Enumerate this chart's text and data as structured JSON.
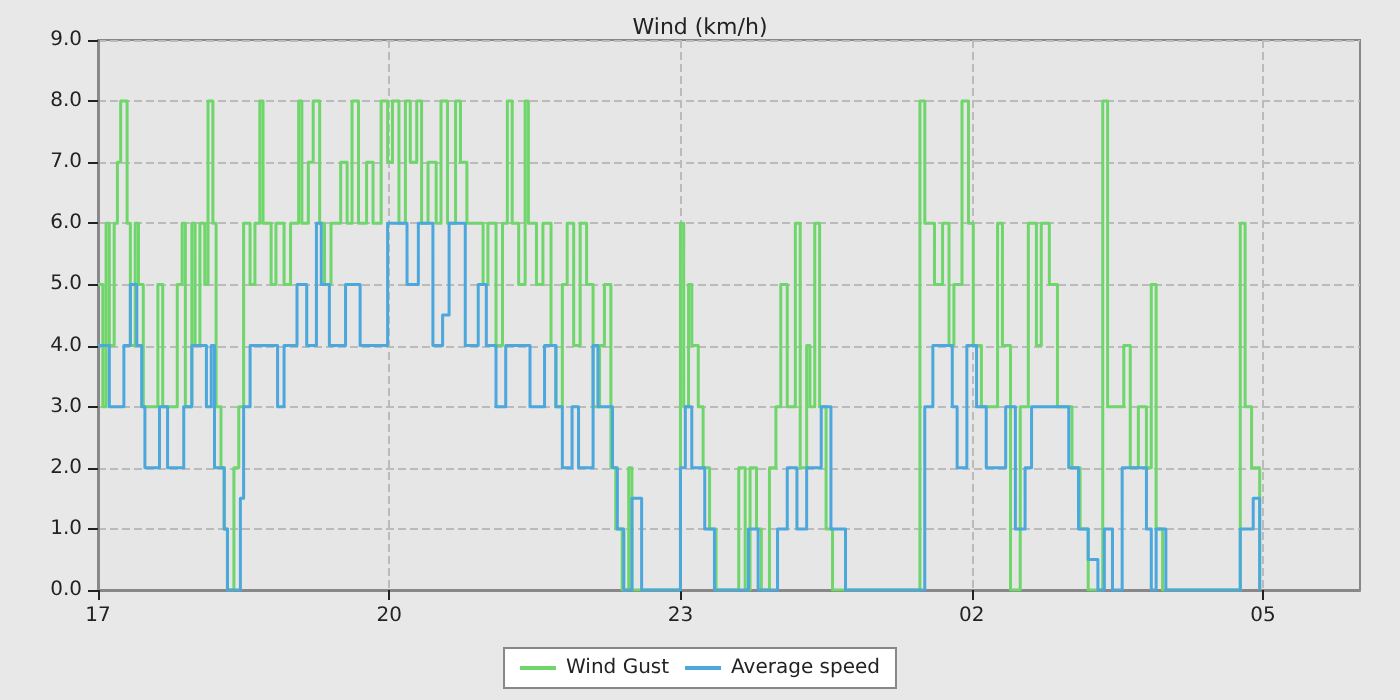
{
  "chart_data": {
    "type": "step",
    "title": "Wind (km/h)",
    "xlim": [
      "--01-01T17:00",
      "--01-02T06:00"
    ],
    "xticks": [
      {
        "value": "--01-01T17:00",
        "label": "17"
      },
      {
        "value": "--01-01T20:00",
        "label": "20"
      },
      {
        "value": "--01-01T23:00",
        "label": "23"
      },
      {
        "value": "--01-02T02:00",
        "label": "02"
      },
      {
        "value": "--01-02T05:00",
        "label": "05"
      }
    ],
    "ylim": [
      0,
      9
    ],
    "yticks": [
      {
        "value": 0,
        "label": "0.0"
      },
      {
        "value": 1,
        "label": "1.0"
      },
      {
        "value": 2,
        "label": "2.0"
      },
      {
        "value": 3,
        "label": "3.0"
      },
      {
        "value": 4,
        "label": "4.0"
      },
      {
        "value": 5,
        "label": "5.0"
      },
      {
        "value": 6,
        "label": "6.0"
      },
      {
        "value": 7,
        "label": "7.0"
      },
      {
        "value": 8,
        "label": "8.0"
      },
      {
        "value": 9,
        "label": "9.0"
      }
    ],
    "grid": true,
    "legend": "bottom",
    "marker": "none",
    "line_style": "solid",
    "series": [
      {
        "name": "Wind Gust",
        "color": "#6fd66b",
        "x": [
          "--01-01T17:00",
          "--01-01T17:03",
          "--01-01T17:05",
          "--01-01T17:07",
          "--01-01T17:10",
          "--01-01T17:12",
          "--01-01T17:14",
          "--01-01T17:18",
          "--01-01T17:20",
          "--01-01T17:23",
          "--01-01T17:25",
          "--01-01T17:28",
          "--01-01T17:31",
          "--01-01T17:37",
          "--01-01T17:40",
          "--01-01T17:43",
          "--01-01T17:49",
          "--01-01T17:52",
          "--01-01T17:54",
          "--01-01T17:58",
          "--01-01T18:00",
          "--01-01T18:03",
          "--01-01T18:06",
          "--01-01T18:08",
          "--01-01T18:11",
          "--01-01T18:13",
          "--01-01T18:16",
          "--01-01T18:18",
          "--01-01T18:20",
          "--01-01T18:24",
          "--01-01T18:27",
          "--01-01T18:30",
          "--01-01T18:34",
          "--01-01T18:37",
          "--01-01T18:40",
          "--01-01T18:42",
          "--01-01T18:47",
          "--01-01T18:50",
          "--01-01T18:55",
          "--01-01T18:59",
          "--01-01T19:04",
          "--01-01T19:06",
          "--01-01T19:10",
          "--01-01T19:13",
          "--01-01T19:17",
          "--01-01T19:20",
          "--01-01T19:24",
          "--01-01T19:30",
          "--01-01T19:34",
          "--01-01T19:37",
          "--01-01T19:41",
          "--01-01T19:46",
          "--01-01T19:50",
          "--01-01T19:55",
          "--01-01T19:59",
          "--01-01T20:02",
          "--01-01T20:06",
          "--01-01T20:10",
          "--01-01T20:13",
          "--01-01T20:17",
          "--01-01T20:20",
          "--01-01T20:24",
          "--01-01T20:29",
          "--01-01T20:32",
          "--01-01T20:36",
          "--01-01T20:41",
          "--01-01T20:44",
          "--01-01T20:48",
          "--01-01T20:54",
          "--01-01T20:58",
          "--01-01T21:01",
          "--01-01T21:06",
          "--01-01T21:10",
          "--01-01T21:13",
          "--01-01T21:16",
          "--01-01T21:20",
          "--01-01T21:24",
          "--01-01T21:26",
          "--01-01T21:31",
          "--01-01T21:35",
          "--01-01T21:40",
          "--01-01T21:43",
          "--01-01T21:47",
          "--01-01T21:50",
          "--01-01T21:54",
          "--01-01T21:58",
          "--01-01T22:02",
          "--01-01T22:06",
          "--01-01T22:10",
          "--01-01T22:13",
          "--01-01T22:17",
          "--01-01T22:20",
          "--01-01T22:24",
          "--01-01T22:28",
          "--01-01T22:30",
          "--01-01T23:00",
          "--01-01T23:02",
          "--01-01T23:05",
          "--01-01T23:07",
          "--01-01T23:11",
          "--01-01T23:14",
          "--01-01T23:18",
          "--01-01T23:22",
          "--01-01T23:36",
          "--01-01T23:40",
          "--01-01T23:43",
          "--01-01T23:47",
          "--01-01T23:50",
          "--01-01T23:55",
          "--01-01T23:59",
          "--01-02T00:02",
          "--01-02T00:06",
          "--01-02T00:11",
          "--01-02T00:14",
          "--01-02T00:18",
          "--01-02T00:20",
          "--01-02T00:23",
          "--01-02T00:26",
          "--01-02T00:30",
          "--01-02T00:34",
          "--01-02T01:28",
          "--01-02T01:31",
          "--01-02T01:37",
          "--01-02T01:42",
          "--01-02T01:46",
          "--01-02T01:49",
          "--01-02T01:54",
          "--01-02T01:58",
          "--01-02T02:01",
          "--01-02T02:06",
          "--01-02T02:16",
          "--01-02T02:19",
          "--01-02T02:24",
          "--01-02T02:30",
          "--01-02T02:35",
          "--01-02T02:40",
          "--01-02T02:43",
          "--01-02T02:48",
          "--01-02T02:53",
          "--01-02T02:58",
          "--01-02T03:02",
          "--01-02T03:07",
          "--01-02T03:12",
          "--01-02T03:21",
          "--01-02T03:24",
          "--01-02T03:29",
          "--01-02T03:34",
          "--01-02T03:38",
          "--01-02T03:43",
          "--01-02T03:48",
          "--01-02T03:51",
          "--01-02T03:54",
          "--01-02T03:58",
          "--01-02T04:46",
          "--01-02T04:49",
          "--01-02T04:53",
          "--01-02T04:58"
        ],
        "values": [
          5,
          3,
          6,
          4,
          6,
          7,
          8,
          6,
          4,
          6,
          5,
          3,
          3,
          5,
          3,
          3,
          5,
          6,
          3,
          6,
          4,
          6,
          5,
          8,
          6,
          3,
          2,
          1,
          0,
          2,
          3,
          6,
          5,
          6,
          8,
          6,
          5,
          6,
          5,
          6,
          8,
          6,
          7,
          8,
          6,
          5,
          6,
          7,
          6,
          8,
          6,
          7,
          6,
          8,
          7,
          8,
          6,
          8,
          7,
          8,
          6,
          7,
          6,
          8,
          6,
          8,
          7,
          6,
          6,
          5,
          6,
          4,
          6,
          8,
          6,
          5,
          8,
          6,
          5,
          6,
          4,
          3,
          5,
          6,
          4,
          6,
          5,
          3,
          4,
          5,
          2,
          1,
          0,
          2,
          0,
          6,
          3,
          5,
          4,
          3,
          2,
          1,
          0,
          2,
          0,
          2,
          1,
          0,
          2,
          3,
          5,
          3,
          6,
          2,
          4,
          3,
          6,
          3,
          1,
          0,
          8,
          6,
          5,
          6,
          4,
          5,
          8,
          6,
          4,
          3,
          6,
          4,
          0,
          3,
          6,
          4,
          6,
          5,
          3,
          3,
          2,
          1,
          0,
          8,
          3,
          3,
          4,
          2,
          3,
          2,
          5,
          1,
          0,
          6,
          3,
          2,
          0
        ]
      },
      {
        "name": "Average speed",
        "color": "#4ba7dc",
        "x": [
          "--01-01T17:00",
          "--01-01T17:07",
          "--01-01T17:16",
          "--01-01T17:20",
          "--01-01T17:24",
          "--01-01T17:27",
          "--01-01T17:29",
          "--01-01T17:38",
          "--01-01T17:43",
          "--01-01T17:53",
          "--01-01T17:58",
          "--01-01T18:07",
          "--01-01T18:10",
          "--01-01T18:12",
          "--01-01T18:18",
          "--01-01T18:20",
          "--01-01T18:28",
          "--01-01T18:30",
          "--01-01T18:34",
          "--01-01T18:51",
          "--01-01T18:55",
          "--01-01T19:03",
          "--01-01T19:09",
          "--01-01T19:15",
          "--01-01T19:18",
          "--01-01T19:23",
          "--01-01T19:33",
          "--01-01T19:42",
          "--01-01T19:59",
          "--01-01T20:11",
          "--01-01T20:18",
          "--01-01T20:27",
          "--01-01T20:33",
          "--01-01T20:37",
          "--01-01T20:47",
          "--01-01T20:55",
          "--01-01T21:00",
          "--01-01T21:06",
          "--01-01T21:12",
          "--01-01T21:27",
          "--01-01T21:36",
          "--01-01T21:43",
          "--01-01T21:47",
          "--01-01T21:53",
          "--01-01T21:57",
          "--01-01T22:06",
          "--01-01T22:09",
          "--01-01T22:18",
          "--01-01T22:21",
          "--01-01T22:25",
          "--01-01T22:30",
          "--01-01T22:36",
          "--01-01T23:00",
          "--01-01T23:03",
          "--01-01T23:07",
          "--01-01T23:15",
          "--01-01T23:21",
          "--01-01T23:42",
          "--01-01T23:48",
          "--01-02T00:00",
          "--01-02T00:06",
          "--01-02T00:12",
          "--01-02T00:18",
          "--01-02T00:27",
          "--01-02T00:33",
          "--01-02T00:42",
          "--01-02T01:31",
          "--01-02T01:36",
          "--01-02T01:48",
          "--01-02T01:51",
          "--01-02T01:57",
          "--01-02T02:03",
          "--01-02T02:09",
          "--01-02T02:21",
          "--01-02T02:27",
          "--01-02T02:33",
          "--01-02T02:37",
          "--01-02T03:00",
          "--01-02T03:06",
          "--01-02T03:12",
          "--01-02T03:18",
          "--01-02T03:22",
          "--01-02T03:27",
          "--01-02T03:33",
          "--01-02T03:48",
          "--01-02T03:51",
          "--01-02T03:54",
          "--01-02T04:00",
          "--01-02T04:46",
          "--01-02T04:54",
          "--01-02T04:58"
        ],
        "values": [
          4,
          3,
          4,
          5,
          4,
          3,
          2,
          3,
          2,
          3,
          4,
          3,
          4,
          2,
          1,
          0,
          1.5,
          3,
          4,
          3,
          4,
          5,
          4,
          6,
          5,
          4,
          5,
          4,
          6,
          5,
          6,
          4,
          4.5,
          6,
          4,
          5,
          4,
          3,
          4,
          3,
          4,
          3,
          2,
          3,
          2,
          4,
          3,
          2,
          1,
          0,
          1.5,
          0,
          2,
          3,
          2,
          1,
          0,
          1,
          0,
          1,
          2,
          1,
          2,
          3,
          1,
          0,
          3,
          4,
          3,
          2,
          4,
          3,
          2,
          3,
          1,
          2,
          3,
          2,
          1,
          0.5,
          0,
          1,
          0,
          2,
          1,
          0,
          1,
          0,
          1,
          1.5,
          0
        ]
      }
    ]
  }
}
